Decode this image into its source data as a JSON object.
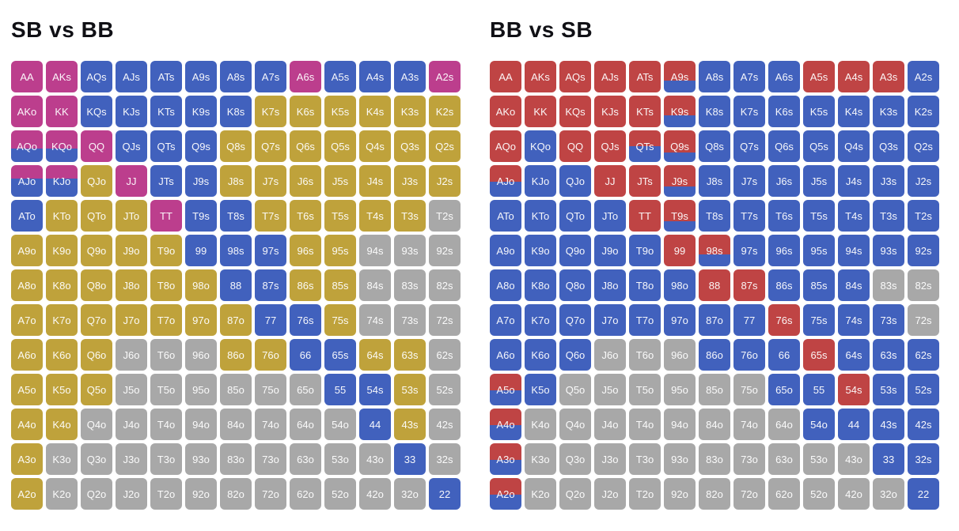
{
  "colors": {
    "m": "#bc3e8d",
    "b": "#4161bd",
    "g": "#bfa23b",
    "x": "#a8a8a8",
    "r": "#bf4444"
  },
  "chart_data": [
    {
      "type": "heatmap",
      "title": "SB vs BB",
      "legend": "cell format hand:color — m=magenta b=blue g=gold x=gray, split cells topColorPct/bottomColor",
      "rows": [
        [
          "AA:m",
          "AKs:m",
          "AQs:b",
          "AJs:b",
          "ATs:b",
          "A9s:b",
          "A8s:b",
          "A7s:b",
          "A6s:m",
          "A5s:b",
          "A4s:b",
          "A3s:b",
          "A2s:m"
        ],
        [
          "AKo:m",
          "KK:m",
          "KQs:b",
          "KJs:b",
          "KTs:b",
          "K9s:b",
          "K8s:b",
          "K7s:g",
          "K6s:g",
          "K5s:g",
          "K4s:g",
          "K3s:g",
          "K2s:g"
        ],
        [
          "AQo:m58/b",
          "KQo:m58/b",
          "QQ:m",
          "QJs:b",
          "QTs:b",
          "Q9s:b",
          "Q8s:g",
          "Q7s:g",
          "Q6s:g",
          "Q5s:g",
          "Q4s:g",
          "Q3s:g",
          "Q2s:g"
        ],
        [
          "AJo:m42/b",
          "KJo:m42/b",
          "QJo:g",
          "JJ:m",
          "JTs:b",
          "J9s:b",
          "J8s:g",
          "J7s:g",
          "J6s:g",
          "J5s:g",
          "J4s:g",
          "J3s:g",
          "J2s:g"
        ],
        [
          "ATo:b",
          "KTo:g",
          "QTo:g",
          "JTo:g",
          "TT:m",
          "T9s:b",
          "T8s:b",
          "T7s:g",
          "T6s:g",
          "T5s:g",
          "T4s:g",
          "T3s:g",
          "T2s:x"
        ],
        [
          "A9o:g",
          "K9o:g",
          "Q9o:g",
          "J9o:g",
          "T9o:g",
          "99:b",
          "98s:b",
          "97s:b",
          "96s:g",
          "95s:g",
          "94s:x",
          "93s:x",
          "92s:x"
        ],
        [
          "A8o:g",
          "K8o:g",
          "Q8o:g",
          "J8o:g",
          "T8o:g",
          "98o:g",
          "88:b",
          "87s:b",
          "86s:g",
          "85s:g",
          "84s:x",
          "83s:x",
          "82s:x"
        ],
        [
          "A7o:g",
          "K7o:g",
          "Q7o:g",
          "J7o:g",
          "T7o:g",
          "97o:g",
          "87o:g",
          "77:b",
          "76s:b",
          "75s:g",
          "74s:x",
          "73s:x",
          "72s:x"
        ],
        [
          "A6o:g",
          "K6o:g",
          "Q6o:g",
          "J6o:x",
          "T6o:x",
          "96o:x",
          "86o:g",
          "76o:g",
          "66:b",
          "65s:b",
          "64s:g",
          "63s:g",
          "62s:x"
        ],
        [
          "A5o:g",
          "K5o:g",
          "Q5o:g",
          "J5o:x",
          "T5o:x",
          "95o:x",
          "85o:x",
          "75o:x",
          "65o:x",
          "55:b",
          "54s:b",
          "53s:g",
          "52s:x"
        ],
        [
          "A4o:g",
          "K4o:g",
          "Q4o:x",
          "J4o:x",
          "T4o:x",
          "94o:x",
          "84o:x",
          "74o:x",
          "64o:x",
          "54o:x",
          "44:b",
          "43s:g",
          "42s:x"
        ],
        [
          "A3o:g",
          "K3o:x",
          "Q3o:x",
          "J3o:x",
          "T3o:x",
          "93o:x",
          "83o:x",
          "73o:x",
          "63o:x",
          "53o:x",
          "43o:x",
          "33:b",
          "32s:x"
        ],
        [
          "A2o:g",
          "K2o:x",
          "Q2o:x",
          "J2o:x",
          "T2o:x",
          "92o:x",
          "82o:x",
          "72o:x",
          "62o:x",
          "52o:x",
          "42o:x",
          "32o:x",
          "22:b"
        ]
      ]
    },
    {
      "type": "heatmap",
      "title": "BB vs SB",
      "legend": "cell format hand:color — r=red b=blue x=gray, split cells topColorPct/bottomColor",
      "rows": [
        [
          "AA:r",
          "AKs:r",
          "AQs:r",
          "AJs:r",
          "ATs:r",
          "A9s:r62/b",
          "A8s:b",
          "A7s:b",
          "A6s:b",
          "A5s:r",
          "A4s:r",
          "A3s:r",
          "A2s:b"
        ],
        [
          "AKo:r",
          "KK:r",
          "KQs:r",
          "KJs:r",
          "KTs:r",
          "K9s:r62/b",
          "K8s:b",
          "K7s:b",
          "K6s:b",
          "K5s:b",
          "K4s:b",
          "K3s:b",
          "K2s:b"
        ],
        [
          "AQo:r",
          "KQo:b",
          "QQ:r",
          "QJs:r",
          "QTs:r50/b",
          "Q9s:r70/b",
          "Q8s:b",
          "Q7s:b",
          "Q6s:b",
          "Q5s:b",
          "Q4s:b",
          "Q3s:b",
          "Q2s:b"
        ],
        [
          "AJo:r52/b",
          "KJo:b",
          "QJo:b",
          "JJ:r",
          "JTs:r",
          "J9s:r68/b",
          "J8s:b",
          "J7s:b",
          "J6s:b",
          "J5s:b",
          "J4s:b",
          "J3s:b",
          "J2s:b"
        ],
        [
          "ATo:b",
          "KTo:b",
          "QTo:b",
          "JTo:b",
          "TT:r",
          "T9s:r68/b",
          "T8s:b",
          "T7s:b",
          "T6s:b",
          "T5s:b",
          "T4s:b",
          "T3s:b",
          "T2s:b"
        ],
        [
          "A9o:b",
          "K9o:b",
          "Q9o:b",
          "J9o:b",
          "T9o:b",
          "99:r",
          "98s:r62/b",
          "97s:b",
          "96s:b",
          "95s:b",
          "94s:b",
          "93s:b",
          "92s:b"
        ],
        [
          "A8o:b",
          "K8o:b",
          "Q8o:b",
          "J8o:b",
          "T8o:b",
          "98o:b",
          "88:r",
          "87s:r",
          "86s:b",
          "85s:b",
          "84s:b",
          "83s:x",
          "82s:x"
        ],
        [
          "A7o:b",
          "K7o:b",
          "Q7o:b",
          "J7o:b",
          "T7o:b",
          "97o:b",
          "87o:b",
          "77:b",
          "76s:r",
          "75s:b",
          "74s:b",
          "73s:b",
          "72s:x"
        ],
        [
          "A6o:b",
          "K6o:b",
          "Q6o:b",
          "J6o:x",
          "T6o:x",
          "96o:x",
          "86o:b",
          "76o:b",
          "66:b",
          "65s:r",
          "64s:b",
          "63s:b",
          "62s:b"
        ],
        [
          "A5o:r52/b",
          "K5o:b",
          "Q5o:x",
          "J5o:x",
          "T5o:x",
          "95o:x",
          "85o:x",
          "75o:x",
          "65o:b",
          "55:b",
          "54s:r",
          "53s:b",
          "52s:b"
        ],
        [
          "A4o:r52/b",
          "K4o:x",
          "Q4o:x",
          "J4o:x",
          "T4o:x",
          "94o:x",
          "84o:x",
          "74o:x",
          "64o:x",
          "54o:b",
          "44:b",
          "43s:b",
          "42s:b"
        ],
        [
          "A3o:r52/b",
          "K3o:x",
          "Q3o:x",
          "J3o:x",
          "T3o:x",
          "93o:x",
          "83o:x",
          "73o:x",
          "63o:x",
          "53o:x",
          "43o:x",
          "33:b",
          "32s:b"
        ],
        [
          "A2o:r52/b",
          "K2o:x",
          "Q2o:x",
          "J2o:x",
          "T2o:x",
          "92o:x",
          "82o:x",
          "72o:x",
          "62o:x",
          "52o:x",
          "42o:x",
          "32o:x",
          "22:b"
        ]
      ]
    }
  ]
}
